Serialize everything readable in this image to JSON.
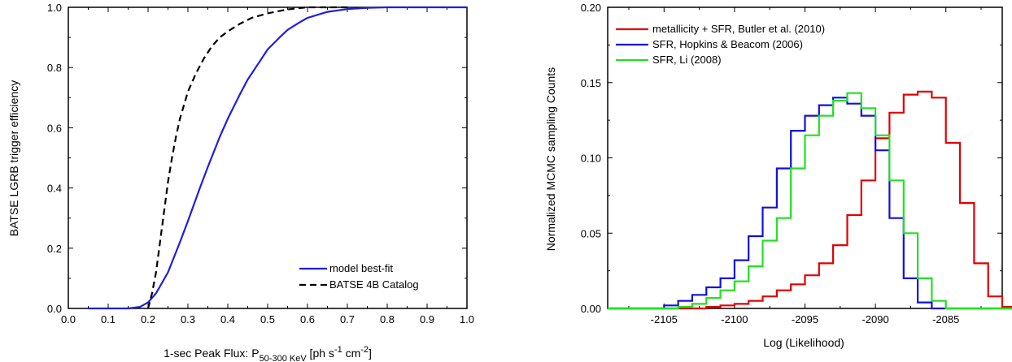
{
  "colors": {
    "model": "#1f1fdc",
    "catalog": "#000000",
    "metallicity": "#e10000",
    "hopkins": "#1010e0",
    "li": "#22e022",
    "axis": "#000000",
    "background": "#ffffff"
  },
  "chart_data": [
    {
      "type": "line",
      "xlabel_main": "1-sec Peak Flux: P",
      "xlabel_sub": "50-300 KeV",
      "xlabel_units_prefix": " [ph s",
      "xlabel_sup1": "-1",
      "xlabel_units_mid": " cm",
      "xlabel_sup2": "-2",
      "xlabel_units_suffix": "]",
      "ylabel": "BATSE LGRB trigger efficiency",
      "xlim": [
        0.0,
        1.0
      ],
      "ylim": [
        0.0,
        1.0
      ],
      "xticks": [
        "0.0",
        "0.1",
        "0.2",
        "0.3",
        "0.4",
        "0.5",
        "0.6",
        "0.7",
        "0.8",
        "0.9",
        "1.0"
      ],
      "yticks": [
        "0.0",
        "0.2",
        "0.4",
        "0.6",
        "0.8",
        "1.0"
      ],
      "legend_position": "bottom-right",
      "grid": false,
      "series": [
        {
          "name": "model best-fit",
          "style": "solid",
          "x": [
            0.05,
            0.1,
            0.15,
            0.18,
            0.2,
            0.22,
            0.25,
            0.28,
            0.3,
            0.33,
            0.35,
            0.38,
            0.4,
            0.43,
            0.45,
            0.48,
            0.5,
            0.53,
            0.55,
            0.58,
            0.6,
            0.65,
            0.7,
            0.75,
            0.8,
            0.9,
            1.0
          ],
          "y": [
            0.0,
            0.0,
            0.0,
            0.005,
            0.02,
            0.05,
            0.12,
            0.22,
            0.29,
            0.4,
            0.47,
            0.57,
            0.63,
            0.71,
            0.76,
            0.82,
            0.86,
            0.9,
            0.925,
            0.95,
            0.965,
            0.985,
            0.994,
            0.998,
            1.0,
            1.0,
            1.0
          ]
        },
        {
          "name": "BATSE 4B Catalog",
          "style": "dashed",
          "x": [
            0.2,
            0.21,
            0.22,
            0.23,
            0.24,
            0.25,
            0.26,
            0.27,
            0.28,
            0.3,
            0.32,
            0.34,
            0.36,
            0.38,
            0.4,
            0.43,
            0.46,
            0.5,
            0.55,
            0.6,
            0.65,
            0.7
          ],
          "y": [
            0.0,
            0.05,
            0.12,
            0.22,
            0.32,
            0.42,
            0.5,
            0.57,
            0.63,
            0.72,
            0.78,
            0.83,
            0.87,
            0.9,
            0.92,
            0.945,
            0.965,
            0.98,
            0.993,
            1.0,
            1.0,
            1.0
          ]
        }
      ]
    },
    {
      "type": "line",
      "step": true,
      "xlabel": "Log (Likelihood)",
      "ylabel": "Normalized MCMC sampling Counts",
      "xlim": [
        -2109,
        -2081
      ],
      "ylim": [
        0.0,
        0.2
      ],
      "xticks": [
        -2105,
        -2100,
        -2095,
        -2090,
        -2085
      ],
      "xtick_labels": [
        "-2105",
        "-2100",
        "-2095",
        "-2090",
        "-2085"
      ],
      "yticks": [
        "0.00",
        "0.05",
        "0.10",
        "0.15",
        "0.20"
      ],
      "legend_position": "top-left",
      "grid": false,
      "bin_edges_start": -2109,
      "bin_width": 1,
      "series": [
        {
          "name": "metallicity + SFR, Butler et al. (2010)",
          "values": [
            0,
            0,
            0,
            0,
            0,
            0,
            0,
            0.001,
            0.002,
            0.003,
            0.005,
            0.008,
            0.012,
            0.016,
            0.022,
            0.03,
            0.042,
            0.062,
            0.085,
            0.113,
            0.13,
            0.142,
            0.144,
            0.14,
            0.11,
            0.07,
            0.03,
            0.008,
            0.001,
            0
          ]
        },
        {
          "name": "SFR, Hopkins & Beacom (2006)",
          "values": [
            0,
            0,
            0,
            0,
            0.002,
            0.005,
            0.009,
            0.014,
            0.02,
            0.032,
            0.048,
            0.067,
            0.093,
            0.118,
            0.128,
            0.135,
            0.14,
            0.136,
            0.128,
            0.105,
            0.06,
            0.02,
            0.004,
            0,
            0,
            0,
            0,
            0,
            0,
            0
          ]
        },
        {
          "name": "SFR, Li (2008)",
          "values": [
            0,
            0,
            0,
            0,
            0,
            0.001,
            0.003,
            0.007,
            0.012,
            0.018,
            0.028,
            0.045,
            0.06,
            0.093,
            0.115,
            0.128,
            0.138,
            0.143,
            0.133,
            0.115,
            0.085,
            0.05,
            0.02,
            0.005,
            0,
            0,
            0,
            0,
            0,
            0
          ]
        }
      ]
    }
  ]
}
